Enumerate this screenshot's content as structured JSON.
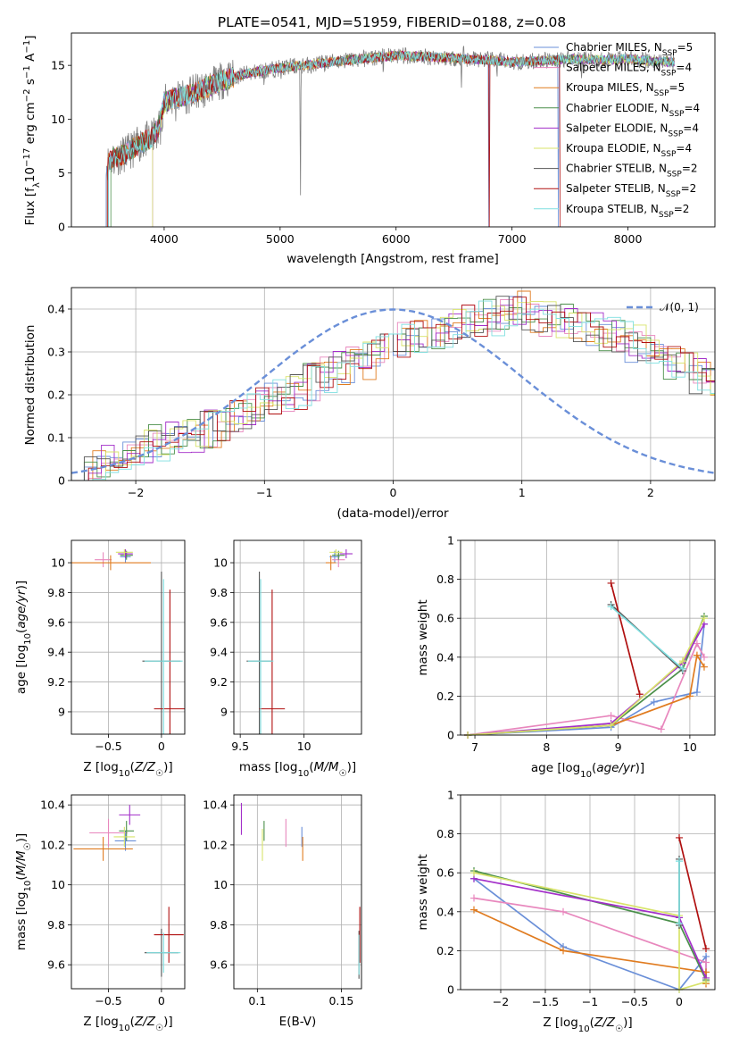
{
  "title": "PLATE=0541, MJD=51959, FIBERID=0188, z=0.08",
  "models": [
    {
      "name": "Chabrier MILES, N_SSP=5",
      "color": "#6a8fd8"
    },
    {
      "name": "Salpeter MILES, N_SSP=4",
      "color": "#e887bd"
    },
    {
      "name": "Kroupa MILES, N_SSP=5",
      "color": "#e07b1f"
    },
    {
      "name": "Chabrier ELODIE, N_SSP=4",
      "color": "#4a8f4a"
    },
    {
      "name": "Salpeter ELODIE, N_SSP=4",
      "color": "#a32fc9"
    },
    {
      "name": "Kroupa ELODIE, N_SSP=4",
      "color": "#d8e36a"
    },
    {
      "name": "Chabrier STELIB, N_SSP=2",
      "color": "#555555"
    },
    {
      "name": "Salpeter STELIB, N_SSP=2",
      "color": "#b01010"
    },
    {
      "name": "Kroupa STELIB, N_SSP=2",
      "color": "#7fdfe0"
    }
  ],
  "chart_data": [
    {
      "type": "line",
      "xlabel": "wavelength [Angstrom, rest frame]",
      "ylabel": "Flux [f_λ 10^-17 erg cm^-2 s^-1 A^-1]",
      "xlim": [
        3200,
        8750
      ],
      "ylim": [
        0,
        18
      ],
      "xticks": [
        4000,
        5000,
        6000,
        7000,
        8000
      ],
      "yticks": [
        0,
        5,
        10,
        15
      ],
      "observed_color": "#808080",
      "continuum": {
        "x": [
          3500,
          3540,
          3600,
          3700,
          3800,
          3900,
          3950,
          4000,
          4100,
          4200,
          4300,
          4500,
          4700,
          4900,
          5100,
          5300,
          5500,
          5700,
          6000,
          6300,
          6600,
          6800,
          7000,
          7200,
          7500,
          7800,
          8000,
          8200,
          8400
        ],
        "y": [
          5.8,
          6.3,
          6.5,
          7.0,
          7.8,
          8.3,
          9.2,
          11.5,
          12.0,
          12.2,
          12.6,
          13.6,
          14.2,
          14.6,
          14.9,
          15.1,
          15.4,
          15.6,
          15.9,
          15.8,
          15.6,
          15.5,
          15.3,
          15.4,
          15.6,
          15.5,
          15.6,
          15.4,
          15.3
        ]
      },
      "spikes": [
        [
          3934,
          -2.4
        ],
        [
          3969,
          -2.2
        ],
        [
          4102,
          -1.2
        ],
        [
          4340,
          -1.2
        ],
        [
          4861,
          -1.4
        ],
        [
          5007,
          -1.8
        ],
        [
          5175,
          -14
        ],
        [
          5270,
          -1.2
        ],
        [
          5890,
          -2.4
        ],
        [
          6563,
          -2.8
        ],
        [
          6583,
          1.8
        ],
        [
          6870,
          -1.6
        ],
        [
          7600,
          -1.4
        ]
      ],
      "model_starts": [
        3500,
        3520,
        3510,
        3540,
        3900,
        3900,
        3520,
        3510,
        3520
      ],
      "model_ends": [
        8400,
        8400,
        8400,
        8400,
        8400,
        8400,
        8400,
        7420,
        8400
      ],
      "model_drops": [
        [
          6800,
          7400
        ],
        [],
        [],
        [],
        [],
        [],
        [],
        [
          6800,
          7420
        ],
        []
      ]
    },
    {
      "type": "bar",
      "xlabel": "(data-model)/error",
      "ylabel": "Normed distribution",
      "xlim": [
        -2.5,
        2.5
      ],
      "ylim": [
        0,
        0.45
      ],
      "xticks": [
        -2,
        -1,
        0,
        1,
        2
      ],
      "yticks": [
        0.0,
        0.1,
        0.2,
        0.3,
        0.4
      ],
      "bin_width": 0.1,
      "legend": "𝒩(0, 1)",
      "normal_color": "#6a8fd8",
      "base_histogram": [
        0.03,
        0.035,
        0.04,
        0.045,
        0.06,
        0.08,
        0.09,
        0.095,
        0.1,
        0.11,
        0.12,
        0.13,
        0.15,
        0.16,
        0.18,
        0.19,
        0.2,
        0.21,
        0.23,
        0.25,
        0.26,
        0.27,
        0.28,
        0.3,
        0.31,
        0.33,
        0.33,
        0.34,
        0.35,
        0.36,
        0.37,
        0.38,
        0.38,
        0.39,
        0.4,
        0.39,
        0.38,
        0.37,
        0.37,
        0.36,
        0.35,
        0.34,
        0.33,
        0.32,
        0.3,
        0.29,
        0.27,
        0.26,
        0.24,
        0.22,
        0.21,
        0.19,
        0.17,
        0.16,
        0.14,
        0.13,
        0.11,
        0.1,
        0.09,
        0.08,
        0.07,
        0.06,
        0.05,
        0.045,
        0.04,
        0.035,
        0.03,
        0.03,
        0.03,
        0.025,
        0.025,
        0.02,
        0.02,
        0.02,
        0.02,
        0.02,
        0.02,
        0.02,
        0.02,
        0.02
      ]
    },
    {
      "type": "scatter",
      "xlabel": "Z [log10(Z/Z☉)]",
      "ylabel": "age  [log10(age/yr)]",
      "xlim": [
        -0.85,
        0.22
      ],
      "ylim": [
        8.85,
        10.15
      ],
      "xticks": [
        -0.5,
        0.0
      ],
      "yticks": [
        9.0,
        9.2,
        9.4,
        9.6,
        9.8,
        10.0
      ],
      "points": [
        {
          "model": 0,
          "x": -0.34,
          "xerr": 0.05,
          "y": 10.04,
          "yerr": 0.04
        },
        {
          "model": 1,
          "x": -0.55,
          "xerr": 0.08,
          "y": 10.02,
          "yerr": 0.05
        },
        {
          "model": 2,
          "x": -0.48,
          "xerr": 0.38,
          "y": 10.0,
          "yerr": 0.05
        },
        {
          "model": 3,
          "x": -0.33,
          "xerr": 0.06,
          "y": 10.05,
          "yerr": 0.03
        },
        {
          "model": 4,
          "x": -0.34,
          "xerr": 0.07,
          "y": 10.06,
          "yerr": 0.03
        },
        {
          "model": 5,
          "x": -0.35,
          "xerr": 0.08,
          "y": 10.07,
          "yerr": 0.02
        },
        {
          "model": 6,
          "x": 0.0,
          "xerr": 0.18,
          "y": 9.34,
          "yerr": 0.6
        },
        {
          "model": 7,
          "x": 0.08,
          "xerr": 0.15,
          "y": 9.02,
          "yerr": 0.8
        },
        {
          "model": 8,
          "x": 0.02,
          "xerr": 0.18,
          "y": 9.34,
          "yerr": 0.55
        }
      ]
    },
    {
      "type": "scatter",
      "xlabel": "mass [log10(M/M☉)]",
      "ylabel": "",
      "xlim": [
        9.45,
        10.45
      ],
      "ylim": [
        8.85,
        10.15
      ],
      "xticks": [
        9.5,
        10.0
      ],
      "yticks": [
        9.0,
        9.2,
        9.4,
        9.6,
        9.8,
        10.0
      ],
      "points": [
        {
          "model": 0,
          "x": 10.24,
          "xerr": 0.04,
          "y": 10.04,
          "yerr": 0.04
        },
        {
          "model": 1,
          "x": 10.27,
          "xerr": 0.05,
          "y": 10.02,
          "yerr": 0.05
        },
        {
          "model": 2,
          "x": 10.21,
          "xerr": 0.04,
          "y": 10.0,
          "yerr": 0.05
        },
        {
          "model": 3,
          "x": 10.27,
          "xerr": 0.05,
          "y": 10.05,
          "yerr": 0.03
        },
        {
          "model": 4,
          "x": 10.33,
          "xerr": 0.05,
          "y": 10.06,
          "yerr": 0.03
        },
        {
          "model": 5,
          "x": 10.25,
          "xerr": 0.05,
          "y": 10.07,
          "yerr": 0.02
        },
        {
          "model": 6,
          "x": 9.65,
          "xerr": 0.1,
          "y": 9.34,
          "yerr": 0.6
        },
        {
          "model": 7,
          "x": 9.75,
          "xerr": 0.1,
          "y": 9.02,
          "yerr": 0.8
        },
        {
          "model": 8,
          "x": 9.66,
          "xerr": 0.1,
          "y": 9.34,
          "yerr": 0.55
        }
      ]
    },
    {
      "type": "line",
      "xlabel": "age  [log10(age/yr)]",
      "ylabel": "mass weight",
      "xlim": [
        6.8,
        10.35
      ],
      "ylim": [
        0,
        1
      ],
      "xticks": [
        7,
        8,
        9,
        10
      ],
      "yticks": [
        0.0,
        0.2,
        0.4,
        0.6,
        0.8,
        1.0
      ],
      "series": [
        {
          "model": 0,
          "x": [
            6.9,
            8.9,
            9.5,
            10.1,
            10.2
          ],
          "y": [
            0.0,
            0.04,
            0.17,
            0.22,
            0.57
          ]
        },
        {
          "model": 1,
          "x": [
            6.9,
            8.9,
            9.6,
            10.1,
            10.2
          ],
          "y": [
            0.0,
            0.1,
            0.03,
            0.47,
            0.4
          ]
        },
        {
          "model": 2,
          "x": [
            6.9,
            8.9,
            10.0,
            10.1,
            10.2
          ],
          "y": [
            0.0,
            0.05,
            0.2,
            0.41,
            0.35
          ]
        },
        {
          "model": 3,
          "x": [
            6.9,
            8.9,
            9.9,
            10.2
          ],
          "y": [
            0.0,
            0.05,
            0.34,
            0.61
          ]
        },
        {
          "model": 4,
          "x": [
            6.9,
            8.9,
            9.9,
            10.2
          ],
          "y": [
            0.0,
            0.06,
            0.37,
            0.57
          ]
        },
        {
          "model": 5,
          "x": [
            6.9,
            8.9,
            9.9,
            10.2
          ],
          "y": [
            0.0,
            0.05,
            0.38,
            0.6
          ]
        },
        {
          "model": 6,
          "x": [
            8.9,
            9.9
          ],
          "y": [
            0.67,
            0.33
          ]
        },
        {
          "model": 7,
          "x": [
            8.9,
            9.3
          ],
          "y": [
            0.78,
            0.21
          ]
        },
        {
          "model": 8,
          "x": [
            8.9,
            9.9
          ],
          "y": [
            0.66,
            0.34
          ]
        }
      ]
    },
    {
      "type": "scatter",
      "xlabel": "Z [log10(Z/Z☉)]",
      "ylabel": "mass [log10(M/M☉)]",
      "xlim": [
        -0.85,
        0.22
      ],
      "ylim": [
        9.48,
        10.45
      ],
      "xticks": [
        -0.5,
        0.0
      ],
      "yticks": [
        9.6,
        9.8,
        10.0,
        10.2,
        10.4
      ],
      "points": [
        {
          "model": 0,
          "x": -0.34,
          "xerr": 0.1,
          "y": 10.22,
          "yerr": 0.05
        },
        {
          "model": 1,
          "x": -0.5,
          "xerr": 0.18,
          "y": 10.26,
          "yerr": 0.07
        },
        {
          "model": 2,
          "x": -0.55,
          "xerr": 0.28,
          "y": 10.18,
          "yerr": 0.06
        },
        {
          "model": 3,
          "x": -0.33,
          "xerr": 0.07,
          "y": 10.27,
          "yerr": 0.05
        },
        {
          "model": 4,
          "x": -0.3,
          "xerr": 0.1,
          "y": 10.35,
          "yerr": 0.05
        },
        {
          "model": 5,
          "x": -0.35,
          "xerr": 0.1,
          "y": 10.24,
          "yerr": 0.05
        },
        {
          "model": 6,
          "x": 0.0,
          "xerr": 0.16,
          "y": 9.66,
          "yerr": 0.12
        },
        {
          "model": 7,
          "x": 0.07,
          "xerr": 0.14,
          "y": 9.75,
          "yerr": 0.14
        },
        {
          "model": 8,
          "x": 0.02,
          "xerr": 0.16,
          "y": 9.66,
          "yerr": 0.1
        }
      ]
    },
    {
      "type": "scatter",
      "xlabel": "E(B-V)",
      "ylabel": "",
      "xlim": [
        0.086,
        0.162
      ],
      "ylim": [
        9.48,
        10.45
      ],
      "xticks": [
        0.1,
        0.15
      ],
      "yticks": [
        9.6,
        9.8,
        10.0,
        10.2,
        10.4
      ],
      "points": [
        {
          "model": 0,
          "x": 0.1265,
          "xerr": 0,
          "y": 10.24,
          "yerr": 0.05
        },
        {
          "model": 1,
          "x": 0.117,
          "xerr": 0,
          "y": 10.26,
          "yerr": 0.07
        },
        {
          "model": 2,
          "x": 0.127,
          "xerr": 0,
          "y": 10.18,
          "yerr": 0.06
        },
        {
          "model": 3,
          "x": 0.104,
          "xerr": 0,
          "y": 10.27,
          "yerr": 0.05
        },
        {
          "model": 4,
          "x": 0.0905,
          "xerr": 0,
          "y": 10.33,
          "yerr": 0.08
        },
        {
          "model": 5,
          "x": 0.103,
          "xerr": 0,
          "y": 10.2,
          "yerr": 0.08
        },
        {
          "model": 6,
          "x": 0.1605,
          "xerr": 0,
          "y": 9.65,
          "yerr": 0.12
        },
        {
          "model": 7,
          "x": 0.161,
          "xerr": 0,
          "y": 9.75,
          "yerr": 0.14
        },
        {
          "model": 8,
          "x": 0.1605,
          "xerr": 0,
          "y": 9.65,
          "yerr": 0.1
        }
      ]
    },
    {
      "type": "line",
      "xlabel": "Z [log10(Z/Z☉)]",
      "ylabel": "mass weight",
      "xlim": [
        -2.45,
        0.4
      ],
      "ylim": [
        0,
        1
      ],
      "xticks": [
        -2.0,
        -1.5,
        -1.0,
        -0.5,
        0.0
      ],
      "yticks": [
        0.0,
        0.2,
        0.4,
        0.6,
        0.8,
        1.0
      ],
      "series": [
        {
          "model": 0,
          "x": [
            -2.3,
            -1.3,
            0.0,
            0.3,
            0.3
          ],
          "y": [
            0.57,
            0.22,
            0.0,
            0.17,
            0.04
          ]
        },
        {
          "model": 1,
          "x": [
            -2.3,
            -1.3,
            0.3,
            0.3
          ],
          "y": [
            0.47,
            0.4,
            0.14,
            0.03
          ]
        },
        {
          "model": 2,
          "x": [
            -2.3,
            -1.3,
            0.3,
            0.3
          ],
          "y": [
            0.41,
            0.2,
            0.09,
            0.03
          ]
        },
        {
          "model": 3,
          "x": [
            -2.3,
            0.0,
            0.3
          ],
          "y": [
            0.61,
            0.34,
            0.05
          ]
        },
        {
          "model": 4,
          "x": [
            -2.3,
            0.0,
            0.3
          ],
          "y": [
            0.57,
            0.37,
            0.06
          ]
        },
        {
          "model": 5,
          "x": [
            -2.3,
            0.0,
            0.0,
            0.3
          ],
          "y": [
            0.6,
            0.38,
            0.0,
            0.04
          ]
        },
        {
          "model": 6,
          "x": [
            0.0,
            0.0
          ],
          "y": [
            0.33,
            0.67
          ]
        },
        {
          "model": 7,
          "x": [
            0.0,
            0.3
          ],
          "y": [
            0.78,
            0.21
          ]
        },
        {
          "model": 8,
          "x": [
            0.0,
            0.0
          ],
          "y": [
            0.34,
            0.66
          ]
        }
      ]
    }
  ]
}
